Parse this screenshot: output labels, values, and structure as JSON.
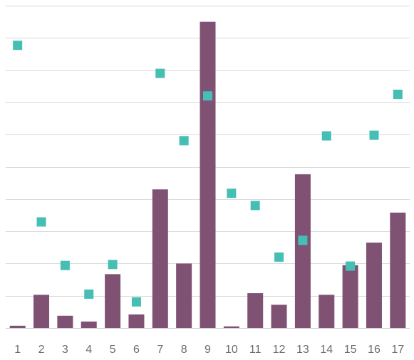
{
  "chart_data": {
    "type": "bar",
    "title": "",
    "xlabel": "",
    "ylabel": "",
    "categories": [
      "1",
      "2",
      "3",
      "4",
      "5",
      "6",
      "7",
      "8",
      "9",
      "10",
      "11",
      "12",
      "13",
      "14",
      "15",
      "16",
      "17"
    ],
    "ylim": [
      0,
      10
    ],
    "grid": true,
    "legend": "none",
    "series": [
      {
        "type": "bar",
        "color": "#7f5274",
        "values": [
          0.07,
          1.03,
          0.38,
          0.2,
          1.67,
          0.42,
          4.3,
          2.0,
          9.5,
          0.05,
          1.08,
          0.72,
          4.77,
          1.03,
          1.95,
          2.65,
          3.58
        ]
      },
      {
        "type": "scatter",
        "marker": "square",
        "color": "#45bfb3",
        "values": [
          8.77,
          3.29,
          1.94,
          1.05,
          1.97,
          0.81,
          7.9,
          5.81,
          7.2,
          4.18,
          3.8,
          2.2,
          2.72,
          5.96,
          1.92,
          5.98,
          7.25
        ]
      }
    ]
  }
}
